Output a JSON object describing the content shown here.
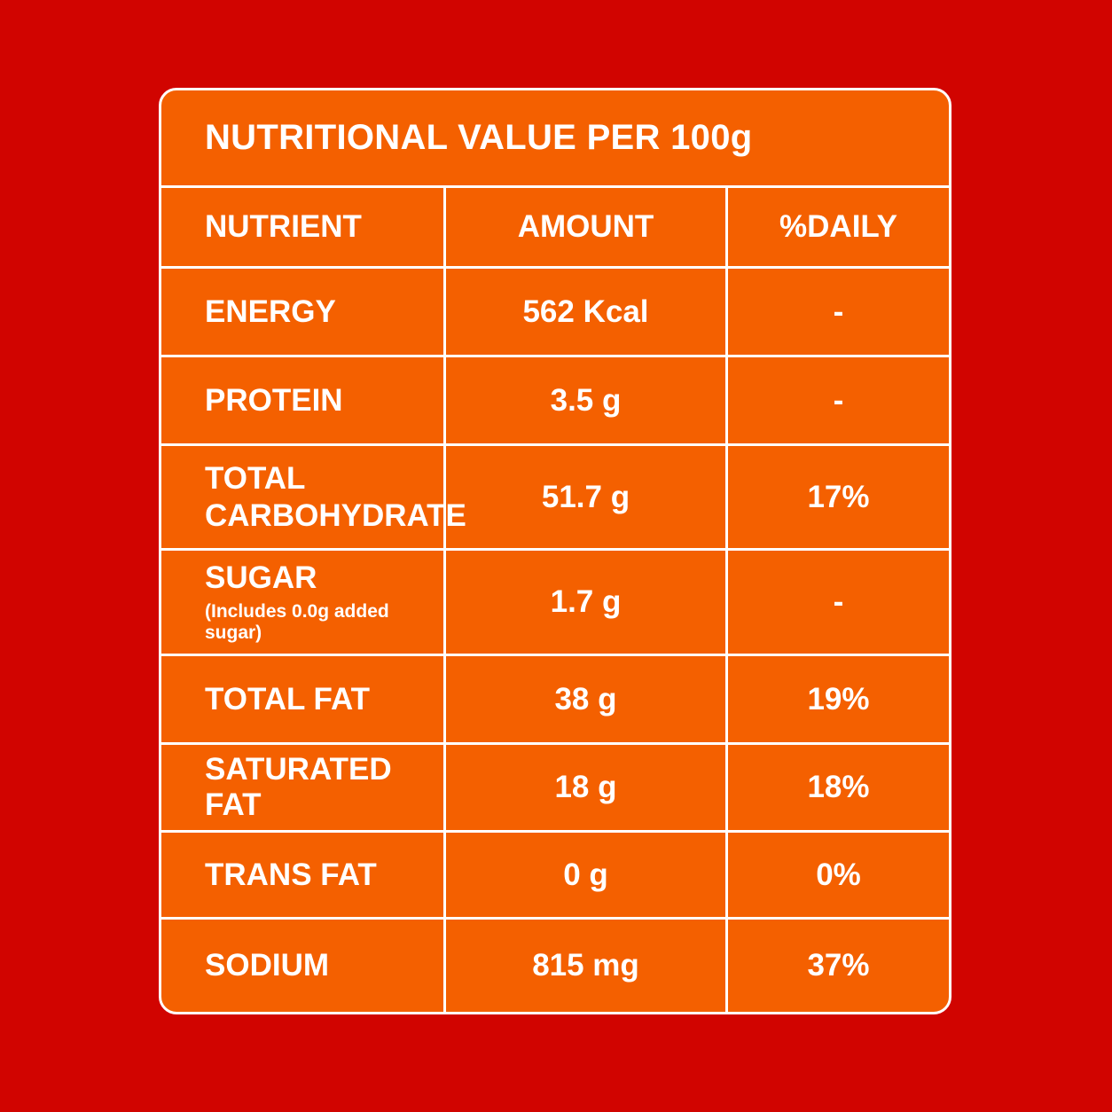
{
  "title": "NUTRITIONAL VALUE PER 100g",
  "columns": [
    "NUTRIENT",
    "AMOUNT",
    "%DAILY"
  ],
  "rows": [
    {
      "nutrient": "ENERGY",
      "note": "",
      "amount": "562 Kcal",
      "daily": "-"
    },
    {
      "nutrient": "PROTEIN",
      "note": "",
      "amount": "3.5 g",
      "daily": "-"
    },
    {
      "nutrient": "TOTAL CARBOHYDRATE",
      "note": "",
      "amount": "51.7 g",
      "daily": "17%"
    },
    {
      "nutrient": "SUGAR",
      "note": "(Includes 0.0g added sugar)",
      "amount": "1.7 g",
      "daily": "-"
    },
    {
      "nutrient": "TOTAL FAT",
      "note": "",
      "amount": "38 g",
      "daily": "19%"
    },
    {
      "nutrient": "SATURATED FAT",
      "note": "",
      "amount": "18 g",
      "daily": "18%"
    },
    {
      "nutrient": "TRANS FAT",
      "note": "",
      "amount": "0 g",
      "daily": "0%"
    },
    {
      "nutrient": "SODIUM",
      "note": "",
      "amount": "815 mg",
      "daily": "37%"
    }
  ],
  "colors": {
    "background": "#d10400",
    "panel": "#f46000",
    "text": "#ffffff"
  }
}
